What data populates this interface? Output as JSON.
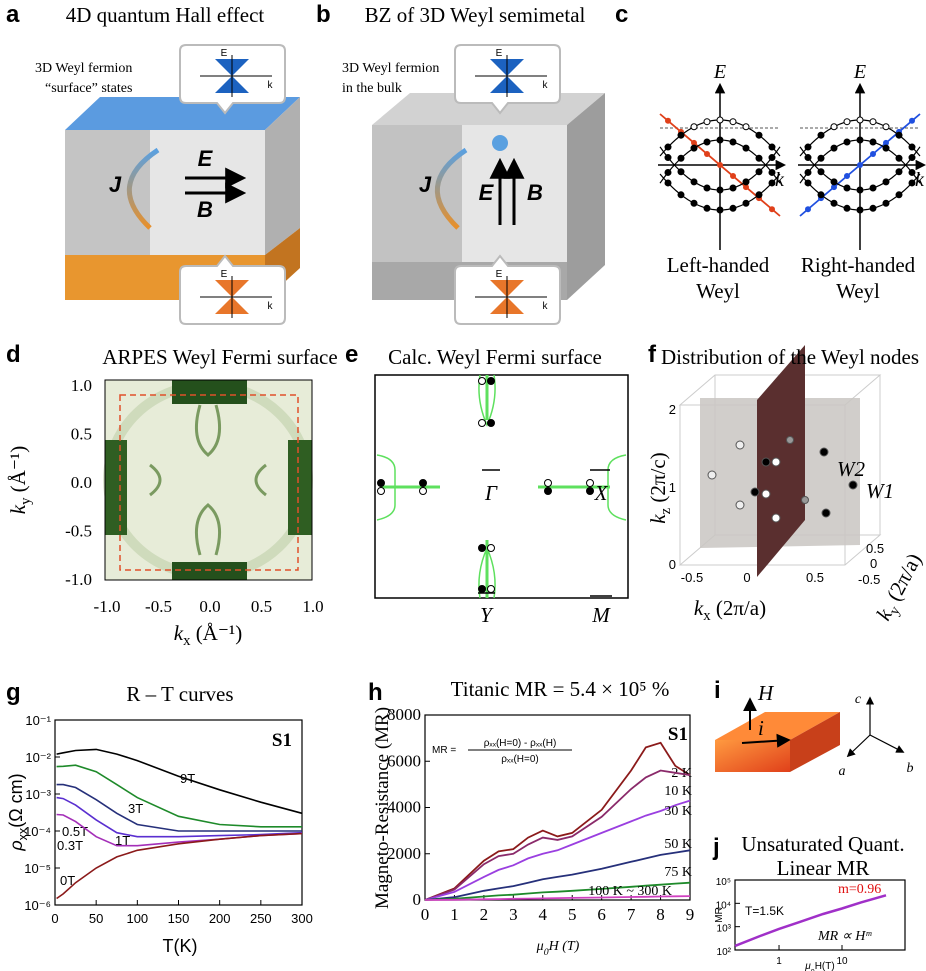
{
  "panels": {
    "a": {
      "letter": "a",
      "title": "4D quantum Hall effect",
      "caption": [
        "3D Weyl fermion",
        "“surface” states"
      ],
      "J": "J",
      "E": "E",
      "B": "B",
      "insets": [
        {
          "E": "E",
          "k": "k"
        },
        {
          "E": "E",
          "k": "k"
        }
      ]
    },
    "b": {
      "letter": "b",
      "title": "BZ of 3D Weyl semimetal",
      "caption": [
        "3D Weyl fermion",
        "in the bulk"
      ],
      "J": "J",
      "E": "E",
      "B": "B",
      "insets": [
        {
          "E": "E",
          "k": "k"
        },
        {
          "E": "E",
          "k": "k"
        }
      ]
    },
    "c": {
      "letter": "c",
      "plots": [
        {
          "E": "E",
          "k": "k",
          "label": [
            "Left-handed",
            "Weyl"
          ]
        },
        {
          "E": "E",
          "k": "k",
          "label": [
            "Right-handed",
            "Weyl"
          ]
        }
      ]
    },
    "d": {
      "letter": "d",
      "title": "ARPES Weyl Fermi surface",
      "ylabel": {
        "main": "k",
        "sub": "y",
        "rest": " (Å⁻¹)"
      },
      "xlabel": {
        "main": "k",
        "sub": "x",
        "rest": " (Å⁻¹)"
      },
      "yticks": [
        "1.0",
        "0.5",
        "0.0",
        "-0.5",
        "-1.0"
      ],
      "xticks": [
        "-1.0",
        "-0.5",
        "0.0",
        "0.5",
        "1.0"
      ]
    },
    "e": {
      "letter": "e",
      "title": "Calc. Weyl Fermi surface",
      "points": [
        "Γ",
        "X",
        "Y",
        "M"
      ]
    },
    "f": {
      "letter": "f",
      "title": "Distribution of the Weyl nodes",
      "zlabel": {
        "main": "k",
        "sub": "z",
        "rest": " (2π/c)"
      },
      "xlabel": {
        "main": "k",
        "sub": "x",
        "rest": " (2π/a)"
      },
      "ylabel": {
        "main": "k",
        "sub": "y",
        "rest": " (2π/a)"
      },
      "zticks": [
        "0",
        "1",
        "2"
      ],
      "xticks": [
        "-0.5",
        "0",
        "0.5"
      ],
      "yticks": [
        "0.5",
        "0",
        "-0.5"
      ],
      "nodes": [
        "W2",
        "W1"
      ]
    },
    "i": {
      "letter": "i",
      "H": "H",
      "i": "i",
      "axes": [
        "c",
        "a",
        "b"
      ]
    }
  },
  "chart_data": [
    {
      "type": "line",
      "letter": "g",
      "title": "R – T curves",
      "annotation": "S1",
      "xlabel": "T(K)",
      "ylabel": {
        "main": "ρ",
        "sub": "xx",
        "rest": "(Ω cm)"
      },
      "xlim": [
        0,
        300
      ],
      "xticks": [
        0,
        50,
        100,
        150,
        200,
        250,
        300
      ],
      "ylog": true,
      "ylim": [
        1e-06,
        0.1
      ],
      "yticks": [
        {
          "value": 1e-06,
          "label": "10⁻⁶"
        },
        {
          "value": 1e-05,
          "label": "10⁻⁵"
        },
        {
          "value": 0.0001,
          "label": "10⁻⁴"
        },
        {
          "value": 0.001,
          "label": "10⁻³"
        },
        {
          "value": 0.01,
          "label": "10⁻²"
        },
        {
          "value": 0.1,
          "label": "10⁻¹"
        }
      ],
      "x": [
        2,
        10,
        25,
        50,
        75,
        100,
        150,
        200,
        250,
        300
      ],
      "series": [
        {
          "name": "9T",
          "color": "#000000",
          "values": [
            0.012,
            0.013,
            0.015,
            0.016,
            0.012,
            0.008,
            0.003,
            0.0013,
            0.0006,
            0.0003
          ]
        },
        {
          "name": "3T",
          "color": "#1e8a2a",
          "values": [
            0.0055,
            0.0056,
            0.006,
            0.004,
            0.0018,
            0.0008,
            0.00025,
            0.00015,
            0.00013,
            0.00013
          ]
        },
        {
          "name": "1T",
          "color": "#26307a",
          "values": [
            0.0018,
            0.0018,
            0.0015,
            0.0007,
            0.0003,
            0.00015,
            0.0001,
            0.0001,
            0.0001,
            0.0001
          ]
        },
        {
          "name": "0.5T",
          "color": "#5a2fd0",
          "values": [
            0.0008,
            0.00075,
            0.0005,
            0.0002,
            9e-05,
            7e-05,
            7e-05,
            7.5e-05,
            8e-05,
            9e-05
          ]
        },
        {
          "name": "0.3T",
          "color": "#a42fb8",
          "values": [
            0.00028,
            0.00027,
            0.00018,
            7e-05,
            4e-05,
            4e-05,
            5e-05,
            6e-05,
            7.5e-05,
            8.5e-05
          ]
        },
        {
          "name": "0T",
          "color": "#8b1a1a",
          "values": [
            1.5e-06,
            2e-06,
            4e-06,
            1e-05,
            2e-05,
            3e-05,
            4.5e-05,
            6e-05,
            7.5e-05,
            8.5e-05
          ]
        }
      ]
    },
    {
      "type": "line",
      "letter": "h",
      "title": "Titanic MR = 5.4 × 10⁵ %",
      "annotation": "S1",
      "formula": {
        "lhs": "MR =",
        "num": "ρₓₓ(H=0) - ρₓₓ(H)",
        "den": "ρₓₓ(H=0)"
      },
      "xlabel": {
        "main": "μ",
        "sub": "0",
        "rest": "H (T)"
      },
      "ylabel": "Magneto-Resistance (MR)",
      "xlim": [
        0,
        9
      ],
      "xticks": [
        0,
        1,
        2,
        3,
        4,
        5,
        6,
        7,
        8,
        9
      ],
      "ylim": [
        0,
        8000
      ],
      "yticks": [
        0,
        2000,
        4000,
        6000,
        8000
      ],
      "x": [
        0,
        1,
        2,
        2.5,
        3,
        3.5,
        4,
        4.5,
        5,
        6,
        7,
        7.5,
        8,
        8.5,
        9
      ],
      "series": [
        {
          "name": "2 K",
          "color": "#8b1a1a",
          "values": [
            0,
            500,
            1700,
            2100,
            2200,
            2700,
            3000,
            2750,
            2900,
            3900,
            5600,
            6600,
            6800,
            5800,
            5400
          ]
        },
        {
          "name": "10 K",
          "color": "#8a2a6a",
          "values": [
            0,
            450,
            1550,
            1900,
            2000,
            2400,
            2700,
            2600,
            2750,
            3600,
            4800,
            5300,
            5600,
            5500,
            5400
          ]
        },
        {
          "name": "30 K",
          "color": "#9a3fe0",
          "values": [
            0,
            350,
            1000,
            1300,
            1500,
            1800,
            2000,
            2150,
            2400,
            2900,
            3400,
            3650,
            3850,
            4100,
            4300
          ]
        },
        {
          "name": "50 K",
          "color": "#26307a",
          "values": [
            0,
            120,
            400,
            500,
            600,
            750,
            900,
            1000,
            1100,
            1350,
            1650,
            1800,
            1950,
            2050,
            2150
          ]
        },
        {
          "name": "75 K",
          "color": "#1e8a2a",
          "values": [
            0,
            50,
            150,
            200,
            230,
            280,
            330,
            360,
            400,
            480,
            570,
            620,
            660,
            710,
            750
          ]
        },
        {
          "name": "100 K ~ 300 K",
          "color": "#d040c0",
          "values": [
            0,
            10,
            30,
            40,
            50,
            60,
            70,
            80,
            90,
            110,
            130,
            140,
            150,
            160,
            170
          ]
        }
      ]
    },
    {
      "type": "line",
      "letter": "j",
      "title": "Unsaturated Quant.",
      "subtitle": "Linear MR",
      "annotations": [
        "T=1.5K",
        "m=0.96",
        "MR ∝ Hᵐ"
      ],
      "xlabel": {
        "main": "μ",
        "sub": "0",
        "rest": "H(T)"
      },
      "ylabel": "MR",
      "xlog": true,
      "xlim": [
        0.2,
        100
      ],
      "xticks": [
        1,
        10
      ],
      "ylog": true,
      "ylim": [
        100,
        100000
      ],
      "yticks": [
        {
          "value": 100,
          "label": "10²"
        },
        {
          "value": 1000,
          "label": "10³"
        },
        {
          "value": 10000,
          "label": "10⁴"
        },
        {
          "value": 100000,
          "label": "10⁵"
        }
      ],
      "x": [
        0.2,
        0.5,
        1,
        2,
        5,
        10,
        20,
        50
      ],
      "series": [
        {
          "color": "#a030c8",
          "values": [
            150,
            400,
            800,
            1500,
            3500,
            6000,
            11000,
            22000
          ]
        }
      ]
    }
  ]
}
